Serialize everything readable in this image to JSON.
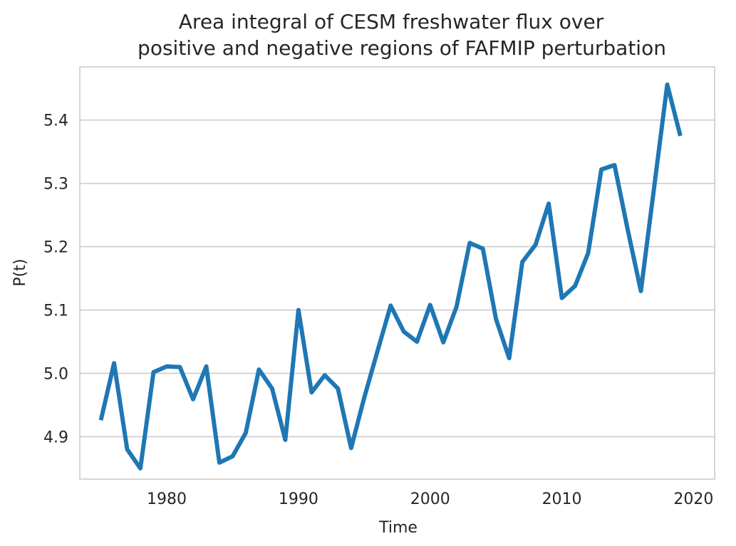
{
  "chart_data": {
    "type": "line",
    "title_lines": [
      "Area integral of CESM freshwater flux over",
      "positive and negative regions of FAFMIP perturbation"
    ],
    "xlabel": "Time",
    "ylabel": "P(t)",
    "xlim": [
      1973.4,
      2021.6
    ],
    "ylim": [
      4.833,
      5.484
    ],
    "x_ticks": [
      1980,
      1990,
      2000,
      2010,
      2020
    ],
    "y_ticks": [
      4.9,
      5.0,
      5.1,
      5.2,
      5.3,
      5.4
    ],
    "y_tick_labels": [
      "4.9",
      "5.0",
      "5.1",
      "5.2",
      "5.3",
      "5.4"
    ],
    "grid": "horizontal",
    "line_color": "#1f77b4",
    "series": [
      {
        "x": [
          1975,
          1976,
          1977,
          1978,
          1979,
          1980,
          1981,
          1982,
          1983,
          1984,
          1985,
          1986,
          1987,
          1988,
          1989,
          1990,
          1991,
          1992,
          1993,
          1994,
          1995,
          1996,
          1997,
          1998,
          1999,
          2000,
          2001,
          2002,
          2003,
          2004,
          2005,
          2006,
          2007,
          2008,
          2009,
          2010,
          2011,
          2012,
          2013,
          2014,
          2015,
          2016,
          2017,
          2018,
          2019
        ],
        "values": [
          4.926,
          5.016,
          4.88,
          4.85,
          5.002,
          5.011,
          5.01,
          4.959,
          5.011,
          4.859,
          4.869,
          4.906,
          5.006,
          4.976,
          4.895,
          5.1,
          4.97,
          4.997,
          4.976,
          4.882,
          4.962,
          5.035,
          5.107,
          5.066,
          5.05,
          5.108,
          5.049,
          5.105,
          5.206,
          5.197,
          5.086,
          5.024,
          5.176,
          5.203,
          5.268,
          5.119,
          5.138,
          5.19,
          5.322,
          5.329,
          5.227,
          5.13,
          5.293,
          5.456,
          5.375
        ]
      }
    ]
  }
}
